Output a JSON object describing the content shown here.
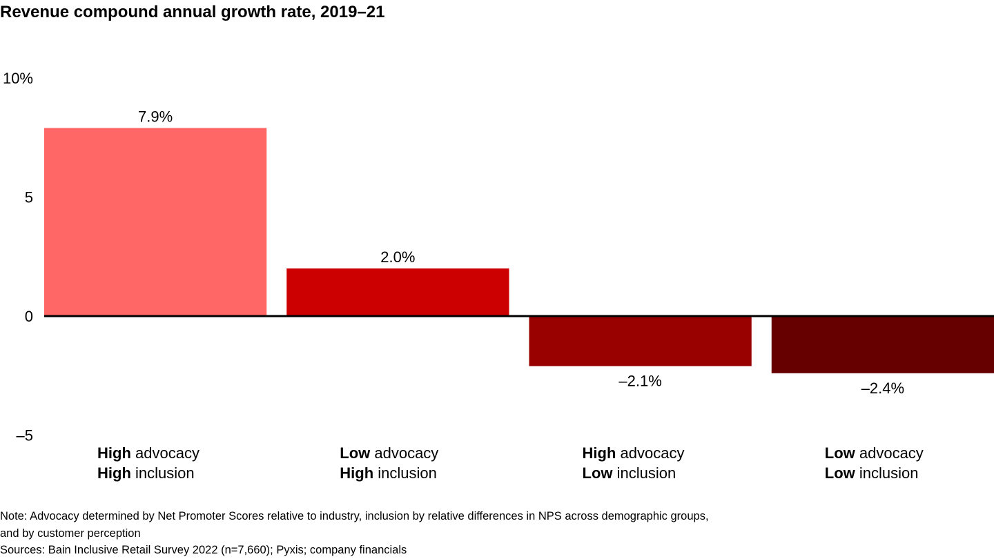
{
  "chart_data": {
    "type": "bar",
    "title": "Revenue compound annual growth rate, 2019–21",
    "xlabel": "",
    "ylabel": "",
    "ylim": [
      -5,
      10
    ],
    "yticks": [
      {
        "value": 10,
        "label": "10%"
      },
      {
        "value": 5,
        "label": "5"
      },
      {
        "value": 0,
        "label": "0"
      },
      {
        "value": -5,
        "label": "–5"
      }
    ],
    "grid": false,
    "legend": "none",
    "categories": [
      {
        "line1_bold": "High",
        "line1_rest": " advocacy",
        "line2_bold": "High",
        "line2_rest": " inclusion"
      },
      {
        "line1_bold": "Low",
        "line1_rest": " advocacy",
        "line2_bold": "High",
        "line2_rest": " inclusion"
      },
      {
        "line1_bold": "High",
        "line1_rest": " advocacy",
        "line2_bold": "Low",
        "line2_rest": " inclusion"
      },
      {
        "line1_bold": "Low",
        "line1_rest": " advocacy",
        "line2_bold": "Low",
        "line2_rest": " inclusion"
      }
    ],
    "values": [
      7.9,
      2.0,
      -2.1,
      -2.4
    ],
    "data_labels": [
      "7.9%",
      "2.0%",
      "–2.1%",
      "–2.4%"
    ],
    "colors": [
      "#ff6666",
      "#cc0000",
      "#990000",
      "#660000"
    ]
  },
  "footnotes": {
    "note_line1": "Note: Advocacy determined by Net Promoter Scores relative to industry, inclusion by relative differences in NPS across demographic groups,",
    "note_line2": "and by customer perception",
    "sources": "Sources: Bain Inclusive Retail Survey 2022 (n=7,660); Pyxis; company financials"
  }
}
